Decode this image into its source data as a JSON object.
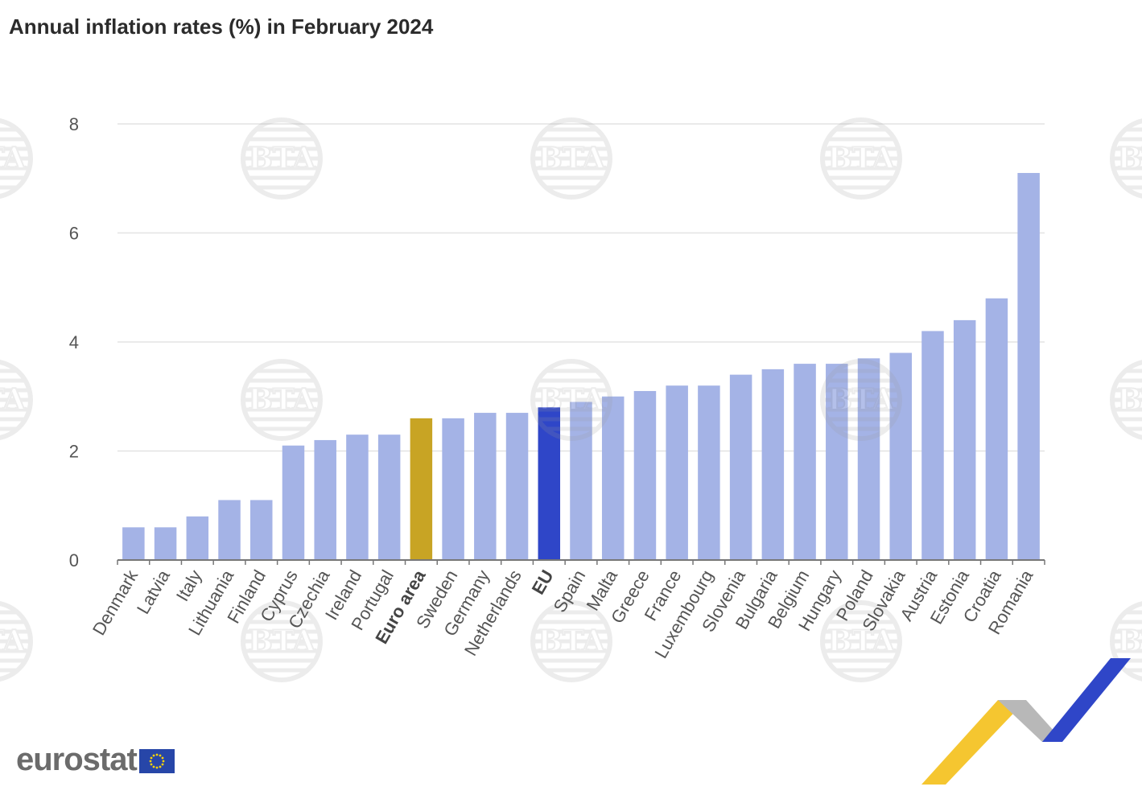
{
  "chart_data": {
    "type": "bar",
    "title": "Annual inflation rates (%) in February 2024",
    "xlabel": "",
    "ylabel": "",
    "ylim": [
      0,
      8
    ],
    "yticks": [
      0,
      2,
      4,
      6,
      8
    ],
    "grid": true,
    "categories": [
      "Denmark",
      "Latvia",
      "Italy",
      "Lithuania",
      "Finland",
      "Cyprus",
      "Czechia",
      "Ireland",
      "Portugal",
      "Euro area",
      "Sweden",
      "Germany",
      "Netherlands",
      "EU",
      "Spain",
      "Malta",
      "Greece",
      "France",
      "Luxembourg",
      "Slovenia",
      "Bulgaria",
      "Belgium",
      "Hungary",
      "Poland",
      "Slovakia",
      "Austria",
      "Estonia",
      "Croatia",
      "Romania"
    ],
    "values": [
      0.6,
      0.6,
      0.8,
      1.1,
      1.1,
      2.1,
      2.2,
      2.3,
      2.3,
      2.6,
      2.6,
      2.7,
      2.7,
      2.8,
      2.9,
      3.0,
      3.1,
      3.2,
      3.2,
      3.4,
      3.5,
      3.6,
      3.6,
      3.7,
      3.8,
      4.2,
      4.4,
      4.8,
      7.1
    ],
    "bold_categories": [
      "Euro area",
      "EU"
    ],
    "colors": {
      "default": "#a4b3e6",
      "Euro area": "#c8a424",
      "EU": "#2f46c8",
      "grid": "#e3e3e3",
      "axis": "#777777"
    }
  },
  "watermark": {
    "text": "BTA"
  },
  "logo": {
    "text": "eurostat"
  }
}
